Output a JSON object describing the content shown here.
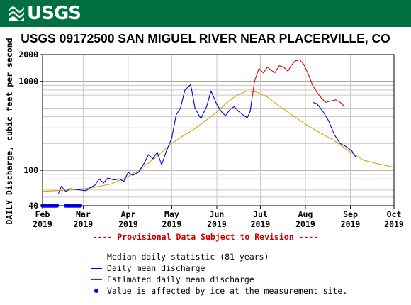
{
  "header": {
    "logo_text": "USGS",
    "bg_color": "#006f41"
  },
  "title": "USGS 09172500 SAN MIGUEL RIVER NEAR PLACERVILLE, CO",
  "provisional_note": "---- Provisional Data Subject to Revision ----",
  "chart_data": {
    "type": "line",
    "ylabel": "DAILY Discharge, cubic feet per second",
    "yscale": "log",
    "ylim": [
      40,
      2000
    ],
    "ytick_labels": [
      {
        "value": 40,
        "label": "40"
      },
      {
        "value": 100,
        "label": "100"
      },
      {
        "value": 1000,
        "label": "1000"
      },
      {
        "value": 2000,
        "label": "2000"
      }
    ],
    "xlim": [
      "2019-02-01",
      "2019-10-01"
    ],
    "xtick_labels": [
      {
        "date": "2019-02-01",
        "month": "Feb",
        "year": "2019"
      },
      {
        "date": "2019-03-01",
        "month": "Mar",
        "year": "2019"
      },
      {
        "date": "2019-04-01",
        "month": "Apr",
        "year": "2019"
      },
      {
        "date": "2019-05-01",
        "month": "May",
        "year": "2019"
      },
      {
        "date": "2019-06-01",
        "month": "Jun",
        "year": "2019"
      },
      {
        "date": "2019-07-01",
        "month": "Jul",
        "year": "2019"
      },
      {
        "date": "2019-08-01",
        "month": "Aug",
        "year": "2019"
      },
      {
        "date": "2019-09-01",
        "month": "Sep",
        "year": "2019"
      },
      {
        "date": "2019-10-01",
        "month": "Oct",
        "year": "2019"
      }
    ],
    "grid": true,
    "series": [
      {
        "name": "Median daily statistic (81 years)",
        "color": "#e0a000",
        "points": [
          [
            "2019-02-01",
            58
          ],
          [
            "2019-02-10",
            59
          ],
          [
            "2019-02-20",
            60
          ],
          [
            "2019-03-01",
            62
          ],
          [
            "2019-03-10",
            65
          ],
          [
            "2019-03-20",
            70
          ],
          [
            "2019-04-01",
            85
          ],
          [
            "2019-04-10",
            105
          ],
          [
            "2019-04-20",
            140
          ],
          [
            "2019-05-01",
            200
          ],
          [
            "2019-05-08",
            240
          ],
          [
            "2019-05-15",
            280
          ],
          [
            "2019-05-22",
            340
          ],
          [
            "2019-06-01",
            450
          ],
          [
            "2019-06-08",
            580
          ],
          [
            "2019-06-15",
            700
          ],
          [
            "2019-06-22",
            780
          ],
          [
            "2019-06-28",
            760
          ],
          [
            "2019-07-05",
            680
          ],
          [
            "2019-07-12",
            560
          ],
          [
            "2019-07-20",
            450
          ],
          [
            "2019-08-01",
            330
          ],
          [
            "2019-08-10",
            270
          ],
          [
            "2019-08-20",
            220
          ],
          [
            "2019-09-01",
            160
          ],
          [
            "2019-09-10",
            130
          ],
          [
            "2019-09-20",
            118
          ],
          [
            "2019-10-01",
            108
          ]
        ]
      },
      {
        "name": "Daily mean discharge",
        "color": "#0000cc",
        "points": [
          [
            "2019-02-12",
            55
          ],
          [
            "2019-02-14",
            66
          ],
          [
            "2019-02-17",
            58
          ],
          [
            "2019-02-20",
            62
          ],
          [
            "2019-03-03",
            59
          ],
          [
            "2019-03-06",
            64
          ],
          [
            "2019-03-09",
            68
          ],
          [
            "2019-03-12",
            80
          ],
          [
            "2019-03-15",
            72
          ],
          [
            "2019-03-18",
            82
          ],
          [
            "2019-03-22",
            78
          ],
          [
            "2019-03-26",
            80
          ],
          [
            "2019-03-29",
            75
          ],
          [
            "2019-04-01",
            95
          ],
          [
            "2019-04-04",
            88
          ],
          [
            "2019-04-08",
            95
          ],
          [
            "2019-04-12",
            120
          ],
          [
            "2019-04-15",
            150
          ],
          [
            "2019-04-18",
            135
          ],
          [
            "2019-04-21",
            160
          ],
          [
            "2019-04-24",
            115
          ],
          [
            "2019-04-27",
            160
          ],
          [
            "2019-05-01",
            230
          ],
          [
            "2019-05-04",
            420
          ],
          [
            "2019-05-07",
            500
          ],
          [
            "2019-05-10",
            800
          ],
          [
            "2019-05-14",
            920
          ],
          [
            "2019-05-17",
            500
          ],
          [
            "2019-05-21",
            380
          ],
          [
            "2019-05-25",
            520
          ],
          [
            "2019-05-28",
            780
          ],
          [
            "2019-06-01",
            550
          ],
          [
            "2019-06-04",
            460
          ],
          [
            "2019-06-07",
            410
          ],
          [
            "2019-06-10",
            480
          ],
          [
            "2019-06-13",
            520
          ],
          [
            "2019-06-16",
            460
          ],
          [
            "2019-06-19",
            420
          ],
          [
            "2019-06-22",
            390
          ],
          [
            "2019-06-24",
            460
          ],
          [
            "2019-06-25",
            600
          ]
        ],
        "points_late": [
          [
            "2019-08-06",
            580
          ],
          [
            "2019-08-09",
            560
          ],
          [
            "2019-08-13",
            460
          ],
          [
            "2019-08-17",
            360
          ],
          [
            "2019-08-21",
            250
          ],
          [
            "2019-08-25",
            200
          ],
          [
            "2019-08-29",
            185
          ],
          [
            "2019-09-02",
            165
          ],
          [
            "2019-09-05",
            138
          ]
        ]
      },
      {
        "name": "Estimated daily mean discharge",
        "color": "#dd0000",
        "points": [
          [
            "2019-06-25",
            600
          ],
          [
            "2019-06-27",
            1000
          ],
          [
            "2019-06-30",
            1400
          ],
          [
            "2019-07-03",
            1250
          ],
          [
            "2019-07-06",
            1450
          ],
          [
            "2019-07-08",
            1350
          ],
          [
            "2019-07-11",
            1250
          ],
          [
            "2019-07-14",
            1500
          ],
          [
            "2019-07-17",
            1450
          ],
          [
            "2019-07-20",
            1300
          ],
          [
            "2019-07-22",
            1500
          ],
          [
            "2019-07-25",
            1700
          ],
          [
            "2019-07-28",
            1750
          ],
          [
            "2019-07-31",
            1550
          ],
          [
            "2019-08-03",
            1200
          ],
          [
            "2019-08-06",
            900
          ],
          [
            "2019-08-09",
            750
          ],
          [
            "2019-08-12",
            650
          ],
          [
            "2019-08-15",
            580
          ],
          [
            "2019-08-18",
            600
          ],
          [
            "2019-08-22",
            620
          ],
          [
            "2019-08-25",
            580
          ],
          [
            "2019-08-28",
            520
          ]
        ]
      }
    ],
    "ice_markers": {
      "name": "Value is affected by ice at the measurement site.",
      "color": "#0000ff",
      "value": 40,
      "dates": [
        "2019-02-01",
        "2019-02-02",
        "2019-02-03",
        "2019-02-04",
        "2019-02-05",
        "2019-02-06",
        "2019-02-07",
        "2019-02-08",
        "2019-02-09",
        "2019-02-10",
        "2019-02-11",
        "2019-02-17",
        "2019-02-18",
        "2019-02-19",
        "2019-02-20",
        "2019-02-21",
        "2019-02-22",
        "2019-02-23",
        "2019-02-24",
        "2019-02-25",
        "2019-02-26",
        "2019-02-27"
      ]
    }
  },
  "legend": [
    {
      "label": "Median daily statistic (81 years)",
      "color": "#e0a000",
      "kind": "line"
    },
    {
      "label": "Daily mean discharge",
      "color": "#0000cc",
      "kind": "line"
    },
    {
      "label": "Estimated daily mean discharge",
      "color": "#dd0000",
      "kind": "line"
    },
    {
      "label": "Value is affected by ice at the measurement site.",
      "color": "#0000ff",
      "kind": "dot"
    }
  ]
}
